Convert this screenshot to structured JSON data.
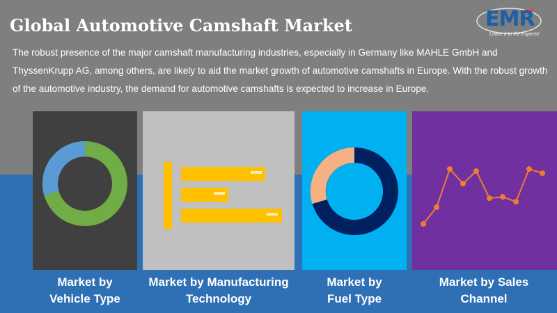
{
  "header": {
    "title": "Global Automotive Camshaft Market",
    "description": "The robust presence of the major camshaft manufacturing industries, especially in Germany like MAHLE GmbH and ThyssenKrupp AG, among others, are likely to aid the market growth of automotive camshafts in Europe. With the robust growth of the automotive industry, the demand for automotive camshafts is expected to increase in Europe."
  },
  "logo": {
    "text": "EMR",
    "tagline": "Leave it to the Experts!"
  },
  "colors": {
    "background": "#7f7f7f",
    "band": "#2f6fb4",
    "panel_vehicle": "#404040",
    "panel_manufacturing": "#c0c0c0",
    "panel_fuel": "#00b0f0",
    "panel_sales": "#7030a0",
    "donut_green": "#70ad47",
    "donut_blue": "#5b9bd5",
    "bar_yellow": "#ffc000",
    "donut_navy": "#002060",
    "donut_peach": "#f4b183",
    "line_orange": "#ed7d31"
  },
  "panels": [
    {
      "caption": "Market by Vehicle Type",
      "caption_lines": [
        "Market by",
        "Vehicle Type"
      ],
      "icon": "donut-chart-icon"
    },
    {
      "caption": "Market by Manufacturing Technology",
      "caption_lines": [
        "Market by Manufacturing",
        "Technology"
      ],
      "icon": "bar-chart-icon"
    },
    {
      "caption": "Market by Fuel Type",
      "caption_lines": [
        "Market by",
        "Fuel Type"
      ],
      "icon": "donut-chart-icon"
    },
    {
      "caption": "Market by Sales Channel",
      "caption_lines": [
        "Market by Sales",
        "Channel"
      ],
      "icon": "line-chart-icon"
    }
  ]
}
